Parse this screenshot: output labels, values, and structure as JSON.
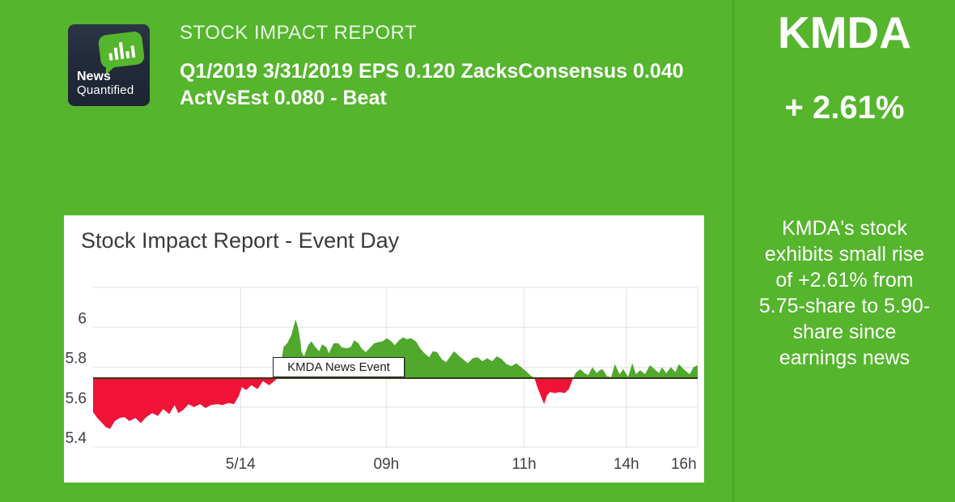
{
  "header": {
    "logo": {
      "line1": "News",
      "line2": "Quantified"
    },
    "report_label": "STOCK IMPACT REPORT",
    "headline": "Q1/2019 3/31/2019 EPS 0.120 ZacksConsensus 0.040 ActVsEst 0.080 - Beat"
  },
  "ticker_panel": {
    "symbol": "KMDA",
    "change": "+ 2.61%",
    "summary": "KMDA's stock exhibits small rise of +2.61% from 5.75-share to 5.90-share since earnings news"
  },
  "chart_data": {
    "type": "area",
    "title": "Stock Impact Report - Event Day",
    "event_label": "KMDA News Event",
    "xlabel": "",
    "ylabel": "",
    "ylim": [
      5.4,
      6.2
    ],
    "y_gridlines": [
      6.2,
      6.0,
      5.8,
      5.6,
      5.4
    ],
    "y_tick_labels": [
      {
        "value": 6.0,
        "label": "6"
      },
      {
        "value": 5.8,
        "label": "5.8"
      },
      {
        "value": 5.6,
        "label": "5.6"
      },
      {
        "value": 5.4,
        "label": "5.4"
      }
    ],
    "x_ticks": [
      {
        "label": "5/14",
        "f": 0.244
      },
      {
        "label": "09h",
        "f": 0.485
      },
      {
        "label": "11h",
        "f": 0.713
      },
      {
        "label": "14h",
        "f": 0.882
      },
      {
        "label": "16h",
        "f": 1.0,
        "label_f": 0.977
      }
    ],
    "baseline": 5.745,
    "colors": {
      "up": "#50a82d",
      "down": "#f01237",
      "baseline": "#333a12",
      "grid": "#e2e2e2",
      "page_green": "#55b52d",
      "tick_text": "#3f3f3f"
    },
    "points": [
      [
        0.0,
        5.575
      ],
      [
        0.007,
        5.545
      ],
      [
        0.015,
        5.52
      ],
      [
        0.021,
        5.5
      ],
      [
        0.028,
        5.49
      ],
      [
        0.036,
        5.53
      ],
      [
        0.044,
        5.545
      ],
      [
        0.052,
        5.55
      ],
      [
        0.06,
        5.53
      ],
      [
        0.07,
        5.545
      ],
      [
        0.079,
        5.52
      ],
      [
        0.088,
        5.55
      ],
      [
        0.098,
        5.57
      ],
      [
        0.107,
        5.555
      ],
      [
        0.116,
        5.59
      ],
      [
        0.126,
        5.565
      ],
      [
        0.135,
        5.61
      ],
      [
        0.141,
        5.57
      ],
      [
        0.149,
        5.585
      ],
      [
        0.158,
        5.615
      ],
      [
        0.167,
        5.6
      ],
      [
        0.177,
        5.615
      ],
      [
        0.186,
        5.595
      ],
      [
        0.195,
        5.61
      ],
      [
        0.205,
        5.615
      ],
      [
        0.214,
        5.61
      ],
      [
        0.224,
        5.62
      ],
      [
        0.233,
        5.615
      ],
      [
        0.241,
        5.655
      ],
      [
        0.246,
        5.7
      ],
      [
        0.253,
        5.685
      ],
      [
        0.262,
        5.71
      ],
      [
        0.272,
        5.69
      ],
      [
        0.281,
        5.73
      ],
      [
        0.291,
        5.71
      ],
      [
        0.3,
        5.73
      ],
      [
        0.305,
        5.745
      ],
      [
        0.309,
        5.78
      ],
      [
        0.315,
        5.9
      ],
      [
        0.321,
        5.92
      ],
      [
        0.328,
        5.96
      ],
      [
        0.335,
        6.04
      ],
      [
        0.339,
        6.0
      ],
      [
        0.343,
        5.93
      ],
      [
        0.345,
        5.875
      ],
      [
        0.349,
        5.855
      ],
      [
        0.356,
        5.91
      ],
      [
        0.361,
        5.93
      ],
      [
        0.368,
        5.9
      ],
      [
        0.374,
        5.88
      ],
      [
        0.379,
        5.915
      ],
      [
        0.386,
        5.9
      ],
      [
        0.39,
        5.87
      ],
      [
        0.398,
        5.92
      ],
      [
        0.406,
        5.92
      ],
      [
        0.411,
        5.9
      ],
      [
        0.419,
        5.895
      ],
      [
        0.426,
        5.9
      ],
      [
        0.432,
        5.935
      ],
      [
        0.439,
        5.92
      ],
      [
        0.444,
        5.895
      ],
      [
        0.451,
        5.875
      ],
      [
        0.459,
        5.9
      ],
      [
        0.465,
        5.92
      ],
      [
        0.471,
        5.925
      ],
      [
        0.479,
        5.93
      ],
      [
        0.486,
        5.945
      ],
      [
        0.493,
        5.93
      ],
      [
        0.499,
        5.91
      ],
      [
        0.506,
        5.935
      ],
      [
        0.513,
        5.95
      ],
      [
        0.519,
        5.94
      ],
      [
        0.526,
        5.945
      ],
      [
        0.534,
        5.93
      ],
      [
        0.541,
        5.895
      ],
      [
        0.548,
        5.87
      ],
      [
        0.556,
        5.85
      ],
      [
        0.562,
        5.88
      ],
      [
        0.569,
        5.875
      ],
      [
        0.577,
        5.84
      ],
      [
        0.584,
        5.825
      ],
      [
        0.59,
        5.85
      ],
      [
        0.597,
        5.88
      ],
      [
        0.604,
        5.86
      ],
      [
        0.612,
        5.84
      ],
      [
        0.62,
        5.82
      ],
      [
        0.628,
        5.845
      ],
      [
        0.636,
        5.85
      ],
      [
        0.644,
        5.83
      ],
      [
        0.652,
        5.845
      ],
      [
        0.66,
        5.83
      ],
      [
        0.668,
        5.855
      ],
      [
        0.676,
        5.84
      ],
      [
        0.684,
        5.815
      ],
      [
        0.692,
        5.805
      ],
      [
        0.7,
        5.82
      ],
      [
        0.708,
        5.8
      ],
      [
        0.716,
        5.78
      ],
      [
        0.723,
        5.76
      ],
      [
        0.73,
        5.745
      ],
      [
        0.735,
        5.7
      ],
      [
        0.74,
        5.66
      ],
      [
        0.746,
        5.615
      ],
      [
        0.751,
        5.66
      ],
      [
        0.756,
        5.675
      ],
      [
        0.764,
        5.67
      ],
      [
        0.772,
        5.675
      ],
      [
        0.78,
        5.67
      ],
      [
        0.787,
        5.69
      ],
      [
        0.794,
        5.745
      ],
      [
        0.799,
        5.775
      ],
      [
        0.806,
        5.79
      ],
      [
        0.813,
        5.77
      ],
      [
        0.819,
        5.76
      ],
      [
        0.826,
        5.8
      ],
      [
        0.833,
        5.77
      ],
      [
        0.838,
        5.785
      ],
      [
        0.843,
        5.79
      ],
      [
        0.85,
        5.755
      ],
      [
        0.857,
        5.75
      ],
      [
        0.863,
        5.815
      ],
      [
        0.871,
        5.765
      ],
      [
        0.877,
        5.79
      ],
      [
        0.885,
        5.752
      ],
      [
        0.892,
        5.82
      ],
      [
        0.898,
        5.765
      ],
      [
        0.905,
        5.785
      ],
      [
        0.913,
        5.765
      ],
      [
        0.921,
        5.81
      ],
      [
        0.929,
        5.79
      ],
      [
        0.936,
        5.77
      ],
      [
        0.941,
        5.8
      ],
      [
        0.948,
        5.77
      ],
      [
        0.956,
        5.8
      ],
      [
        0.963,
        5.775
      ],
      [
        0.969,
        5.815
      ],
      [
        0.977,
        5.79
      ],
      [
        0.987,
        5.765
      ],
      [
        0.993,
        5.8
      ],
      [
        1.0,
        5.81
      ]
    ],
    "bar_icon_heights": [
      9,
      15,
      21,
      9,
      15
    ]
  }
}
